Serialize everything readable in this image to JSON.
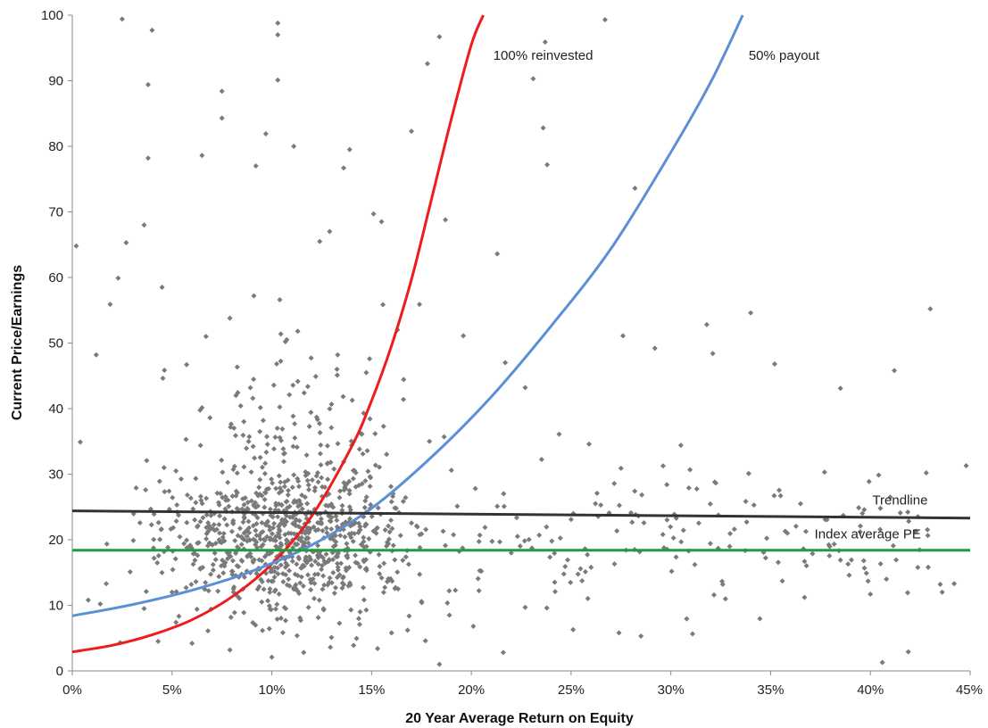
{
  "chart_data": {
    "type": "scatter",
    "title": "",
    "xlabel": "20 Year Average Return on Equity",
    "ylabel": "Current Price/Earnings",
    "xlim": [
      0,
      45
    ],
    "ylim": [
      0,
      100
    ],
    "x_ticks": [
      "0%",
      "5%",
      "10%",
      "15%",
      "20%",
      "25%",
      "30%",
      "35%",
      "40%",
      "45%"
    ],
    "y_ticks": [
      "0",
      "10",
      "20",
      "30",
      "40",
      "50",
      "60",
      "70",
      "80",
      "90",
      "100"
    ],
    "grid": false,
    "scatter_color": "#7a7a7a",
    "points_sample": [
      [
        0.2,
        64.8
      ],
      [
        0.4,
        34.9
      ],
      [
        2.5,
        99.4
      ],
      [
        4.0,
        97.7
      ],
      [
        3.8,
        89.4
      ],
      [
        3.8,
        78.2
      ],
      [
        10.3,
        98.8
      ],
      [
        10.3,
        97.0
      ],
      [
        10.3,
        90.1
      ],
      [
        7.5,
        88.4
      ],
      [
        7.5,
        84.3
      ],
      [
        6.5,
        78.6
      ],
      [
        9.7,
        81.9
      ],
      [
        11.1,
        80.0
      ],
      [
        9.2,
        77.0
      ],
      [
        13.6,
        76.7
      ],
      [
        13.9,
        79.5
      ],
      [
        18.4,
        96.7
      ],
      [
        17.8,
        92.6
      ],
      [
        17.0,
        82.3
      ],
      [
        23.7,
        95.9
      ],
      [
        23.1,
        90.3
      ],
      [
        23.6,
        82.8
      ],
      [
        23.8,
        77.2
      ],
      [
        26.7,
        99.3
      ],
      [
        28.2,
        73.6
      ],
      [
        21.3,
        63.6
      ],
      [
        2.7,
        65.3
      ],
      [
        3.6,
        68.0
      ],
      [
        4.5,
        58.5
      ],
      [
        12.9,
        67.0
      ],
      [
        12.4,
        65.5
      ],
      [
        15.1,
        69.7
      ],
      [
        15.5,
        68.5
      ],
      [
        18.7,
        68.8
      ],
      [
        2.3,
        59.9
      ],
      [
        1.9,
        55.9
      ],
      [
        1.2,
        48.2
      ],
      [
        27.6,
        51.1
      ],
      [
        29.2,
        49.2
      ],
      [
        31.8,
        52.8
      ],
      [
        34.0,
        54.6
      ],
      [
        32.1,
        48.4
      ],
      [
        35.2,
        46.8
      ],
      [
        41.2,
        45.8
      ],
      [
        43.0,
        55.2
      ],
      [
        38.5,
        43.1
      ],
      [
        44.8,
        31.3
      ],
      [
        42.8,
        30.2
      ],
      [
        40.5,
        24.8
      ],
      [
        37.7,
        30.3
      ],
      [
        33.9,
        30.1
      ],
      [
        32.2,
        28.8
      ],
      [
        30.9,
        27.9
      ],
      [
        35.5,
        26.7
      ],
      [
        36.5,
        25.5
      ],
      [
        39.5,
        22.1
      ],
      [
        41.5,
        24.1
      ],
      [
        36.7,
        16.7
      ],
      [
        38.5,
        16.9
      ],
      [
        39.8,
        14.9
      ],
      [
        36.7,
        11.2
      ],
      [
        40.0,
        11.7
      ],
      [
        43.5,
        13.2
      ],
      [
        44.2,
        13.3
      ],
      [
        43.6,
        12.0
      ],
      [
        41.9,
        2.9
      ],
      [
        40.6,
        1.3
      ],
      [
        27.4,
        5.8
      ],
      [
        28.5,
        5.3
      ],
      [
        25.1,
        6.3
      ],
      [
        21.6,
        2.8
      ],
      [
        18.4,
        1.0
      ],
      [
        17.7,
        4.6
      ],
      [
        15.3,
        3.4
      ],
      [
        14.1,
        3.9
      ],
      [
        11.6,
        2.8
      ],
      [
        10.0,
        2.1
      ],
      [
        7.9,
        3.2
      ],
      [
        6.0,
        4.2
      ],
      [
        4.3,
        4.5
      ],
      [
        2.4,
        4.3
      ],
      [
        0.8,
        10.8
      ],
      [
        1.4,
        10.2
      ],
      [
        5.0,
        12.0
      ],
      [
        6.2,
        13.6
      ],
      [
        8.0,
        15.2
      ],
      [
        9.5,
        16.8
      ],
      [
        10.8,
        19.0
      ],
      [
        11.5,
        21.1
      ],
      [
        12.3,
        22.6
      ],
      [
        13.0,
        20.5
      ],
      [
        13.8,
        18.7
      ],
      [
        14.6,
        16.9
      ],
      [
        15.4,
        14.8
      ],
      [
        16.2,
        12.7
      ],
      [
        17.5,
        10.6
      ],
      [
        19.2,
        12.3
      ],
      [
        20.5,
        15.2
      ],
      [
        22.0,
        18.0
      ],
      [
        23.4,
        20.7
      ],
      [
        25.0,
        23.1
      ],
      [
        26.3,
        27.1
      ],
      [
        28.0,
        24.1
      ],
      [
        29.6,
        20.8
      ],
      [
        31.2,
        16.2
      ],
      [
        32.6,
        13.2
      ],
      [
        33.8,
        22.7
      ],
      [
        3.2,
        27.9
      ],
      [
        4.6,
        31.0
      ],
      [
        5.7,
        35.3
      ],
      [
        6.9,
        38.6
      ],
      [
        8.2,
        42.0
      ],
      [
        9.4,
        36.5
      ],
      [
        10.6,
        33.1
      ],
      [
        11.7,
        29.8
      ],
      [
        12.8,
        31.7
      ],
      [
        14.0,
        34.4
      ],
      [
        15.6,
        37.3
      ],
      [
        16.6,
        41.4
      ],
      [
        17.9,
        35.0
      ],
      [
        19.0,
        30.6
      ],
      [
        20.2,
        27.8
      ],
      [
        21.3,
        25.1
      ],
      [
        8.8,
        25.7
      ],
      [
        7.1,
        22.3
      ],
      [
        5.6,
        19.4
      ],
      [
        4.1,
        17.2
      ],
      [
        2.9,
        15.1
      ],
      [
        1.7,
        13.3
      ],
      [
        3.6,
        9.5
      ],
      [
        5.2,
        7.4
      ],
      [
        6.8,
        6.1
      ],
      [
        8.6,
        8.9
      ],
      [
        9.8,
        10.7
      ],
      [
        11.2,
        12.6
      ],
      [
        12.6,
        9.3
      ],
      [
        14.4,
        7.1
      ],
      [
        16.0,
        5.8
      ],
      [
        18.9,
        8.5
      ],
      [
        20.1,
        6.8
      ],
      [
        22.7,
        9.7
      ],
      [
        24.2,
        12.1
      ],
      [
        26.0,
        15.8
      ],
      [
        9.1,
        57.2
      ],
      [
        10.4,
        56.6
      ],
      [
        7.9,
        53.8
      ],
      [
        6.7,
        51.0
      ],
      [
        11.3,
        51.8
      ],
      [
        12.2,
        44.9
      ],
      [
        13.3,
        48.2
      ],
      [
        14.9,
        47.6
      ],
      [
        16.3,
        52.0
      ],
      [
        17.4,
        55.9
      ],
      [
        19.6,
        51.1
      ],
      [
        21.7,
        47.0
      ],
      [
        22.7,
        43.2
      ],
      [
        24.4,
        36.1
      ],
      [
        25.9,
        34.6
      ],
      [
        27.5,
        30.9
      ],
      [
        29.8,
        28.4
      ],
      [
        30.5,
        34.4
      ]
    ],
    "series": [
      {
        "name": "100% reinvested",
        "color": "#ee1c1c",
        "x": [
          0,
          2,
          4,
          6,
          8,
          10,
          12,
          14,
          15,
          16,
          17,
          18,
          19,
          20,
          20.6
        ],
        "y": [
          2.9,
          3.9,
          5.5,
          7.8,
          11.3,
          16.3,
          23.6,
          34.2,
          41.2,
          49.6,
          59.7,
          71.9,
          84.2,
          95.5,
          100
        ]
      },
      {
        "name": "50% payout",
        "color": "#5b8fd6",
        "x": [
          0,
          3,
          6,
          9,
          12,
          15,
          18,
          21,
          24,
          27,
          30,
          32,
          33.6
        ],
        "y": [
          8.4,
          10.1,
          12.3,
          15.2,
          19.2,
          24.8,
          32.6,
          41.8,
          52.6,
          64.4,
          79.1,
          89.8,
          100
        ]
      },
      {
        "name": "Trendline",
        "color": "#333333",
        "x": [
          0,
          45
        ],
        "y": [
          24.4,
          23.3
        ]
      },
      {
        "name": "Index average PE",
        "color": "#1e9e3a",
        "x": [
          0,
          45
        ],
        "y": [
          18.4,
          18.4
        ]
      }
    ],
    "annotations": [
      {
        "text": "100% reinvested",
        "x": 21.1,
        "y": 93.2
      },
      {
        "text": "50% payout",
        "x": 33.9,
        "y": 93.2
      },
      {
        "text": "Trendline",
        "x": 40.1,
        "y": 25.4
      },
      {
        "text": "Index average PE",
        "x": 37.2,
        "y": 20.2
      }
    ]
  }
}
